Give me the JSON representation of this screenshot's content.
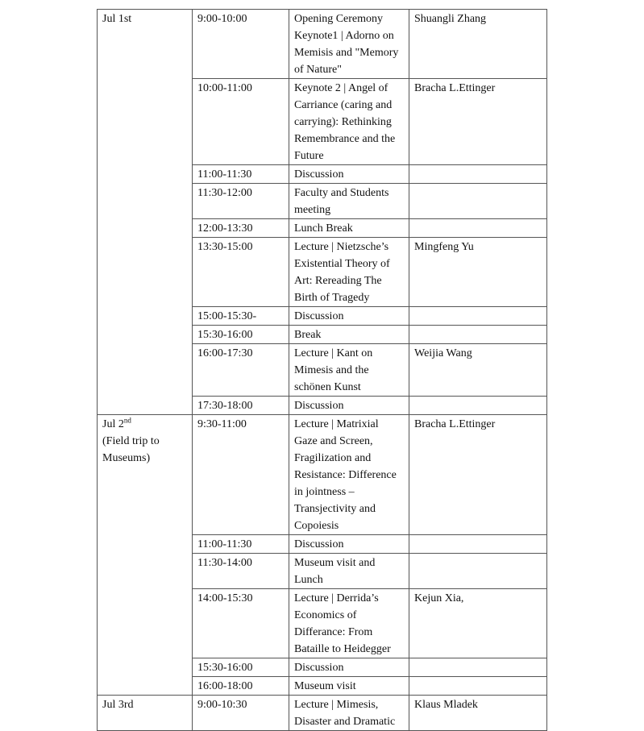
{
  "schedule": [
    {
      "day": "Jul 1st",
      "day_sup": "",
      "day_note": "",
      "sessions": [
        {
          "time": "9:00-10:00",
          "title": "Opening Ceremony\nKeynote1 | Adorno on\nMemisis and \"Memory\nof Nature\"",
          "speaker": "Shuangli Zhang"
        },
        {
          "time": "10:00-11:00",
          "title": "Keynote 2 | Angel of\nCarriance (caring and\ncarrying): Rethinking\nRemembrance and the\nFuture",
          "speaker": "Bracha L.Ettinger"
        },
        {
          "time": "11:00-11:30",
          "title": "Discussion",
          "speaker": ""
        },
        {
          "time": "11:30-12:00",
          "title": "Faculty and Students\nmeeting",
          "speaker": ""
        },
        {
          "time": "12:00-13:30",
          "title": "Lunch Break",
          "speaker": ""
        },
        {
          "time": "13:30-15:00",
          "title": "Lecture | Nietzsche’s\nExistential Theory of\nArt: Rereading The\nBirth of Tragedy",
          "speaker": "Mingfeng Yu"
        },
        {
          "time": "15:00-15:30-",
          "title": "Discussion",
          "speaker": ""
        },
        {
          "time": "15:30-16:00",
          "title": "Break",
          "speaker": ""
        },
        {
          "time": "16:00-17:30",
          "title": "Lecture | Kant on\nMimesis and the\nschönen Kunst",
          "speaker": "Weijia Wang"
        },
        {
          "time": "17:30-18:00",
          "title": "Discussion",
          "speaker": ""
        }
      ]
    },
    {
      "day": "Jul 2",
      "day_sup": "nd",
      "day_note": "(Field trip to\nMuseums)",
      "sessions": [
        {
          "time": "9:30-11:00",
          "title": "Lecture | Matrixial\nGaze and Screen,\nFragilization and\nResistance: Difference\nin jointness –\nTransjectivity and\nCopoiesis",
          "speaker": "Bracha L.Ettinger"
        },
        {
          "time": "11:00-11:30",
          "title": "Discussion",
          "speaker": ""
        },
        {
          "time": "11:30-14:00",
          "title": "Museum visit and\nLunch",
          "speaker": ""
        },
        {
          "time": "14:00-15:30",
          "title": "Lecture | Derrida’s\nEconomics of\nDifferance: From\nBataille to Heidegger",
          "speaker": "Kejun Xia,"
        },
        {
          "time": "15:30-16:00",
          "title": "Discussion",
          "speaker": ""
        },
        {
          "time": "16:00-18:00",
          "title": "Museum visit",
          "speaker": ""
        }
      ]
    },
    {
      "day": "Jul 3rd",
      "day_sup": "",
      "day_note": "",
      "sessions": [
        {
          "time": "9:00-10:30",
          "title": "Lecture | Mimesis,\nDisaster and Dramatic",
          "speaker": "Klaus Mladek"
        }
      ]
    }
  ]
}
